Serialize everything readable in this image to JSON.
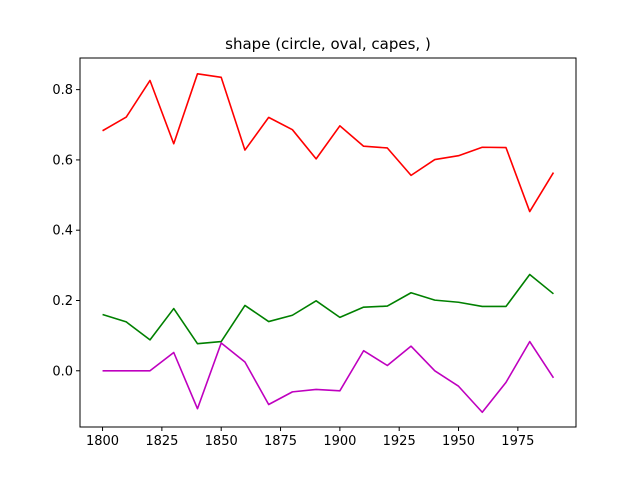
{
  "chart_data": {
    "type": "line",
    "title": "shape (circle, oval, capes, )",
    "xlabel": "",
    "ylabel": "",
    "xlim": [
      1790.5,
      1999.5
    ],
    "ylim": [
      -0.16,
      0.89
    ],
    "x_ticks": [
      1800,
      1825,
      1850,
      1875,
      1900,
      1925,
      1950,
      1975
    ],
    "y_ticks": [
      0.0,
      0.2,
      0.4,
      0.6,
      0.8
    ],
    "y_tick_labels": [
      "0.0",
      "0.2",
      "0.4",
      "0.6",
      "0.8"
    ],
    "grid": false,
    "x": [
      1800,
      1810,
      1820,
      1830,
      1840,
      1850,
      1860,
      1870,
      1880,
      1890,
      1900,
      1910,
      1920,
      1930,
      1940,
      1950,
      1960,
      1970,
      1980,
      1990
    ],
    "series": [
      {
        "color": "#ff0000",
        "values": [
          0.683,
          0.722,
          0.826,
          0.646,
          0.845,
          0.835,
          0.628,
          0.721,
          0.686,
          0.603,
          0.697,
          0.639,
          0.634,
          0.556,
          0.601,
          0.612,
          0.636,
          0.635,
          0.453,
          0.564
        ]
      },
      {
        "color": "#008000",
        "values": [
          0.16,
          0.139,
          0.088,
          0.177,
          0.077,
          0.083,
          0.186,
          0.14,
          0.158,
          0.199,
          0.152,
          0.181,
          0.184,
          0.222,
          0.201,
          0.195,
          0.183,
          0.183,
          0.274,
          0.219
        ]
      },
      {
        "color": "#bf00bf",
        "values": [
          0.0,
          0.0,
          0.0,
          0.052,
          -0.108,
          0.079,
          0.025,
          -0.096,
          -0.06,
          -0.053,
          -0.057,
          0.057,
          0.015,
          0.07,
          0.0,
          -0.044,
          -0.118,
          -0.033,
          0.083,
          -0.02
        ]
      }
    ]
  }
}
